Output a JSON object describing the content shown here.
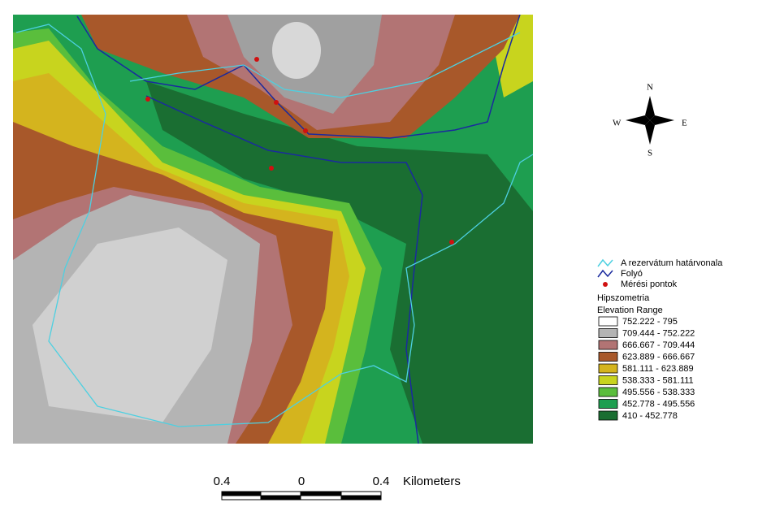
{
  "compass": {
    "n": "N",
    "s": "S",
    "e": "E",
    "w": "W"
  },
  "legend": {
    "items": [
      {
        "label": "A rezervátum határvonala",
        "color": "#4dd0e1"
      },
      {
        "label": "Folyó",
        "color": "#1a2a9e"
      },
      {
        "label": "Mérési pontok",
        "color": "#d01010"
      }
    ],
    "group_title": "Hipszometria",
    "field": "Elevation Range",
    "classes": [
      {
        "label": "752.222 - 795",
        "color": "#ffffff"
      },
      {
        "label": "709.444 - 752.222",
        "color": "#b4b4b4"
      },
      {
        "label": "666.667 - 709.444",
        "color": "#b27474"
      },
      {
        "label": "623.889 - 666.667",
        "color": "#a8582a"
      },
      {
        "label": "581.111 - 623.889",
        "color": "#d4b41e"
      },
      {
        "label": "538.333 - 581.111",
        "color": "#c8d41e"
      },
      {
        "label": "495.556 - 538.333",
        "color": "#5abe3c"
      },
      {
        "label": "452.778 - 495.556",
        "color": "#1e9e50"
      },
      {
        "label": "410 - 452.778",
        "color": "#1a6e32"
      }
    ]
  },
  "scale_bar": {
    "labels": [
      "0.4",
      "0",
      "0.4"
    ],
    "unit": "Kilometers"
  }
}
